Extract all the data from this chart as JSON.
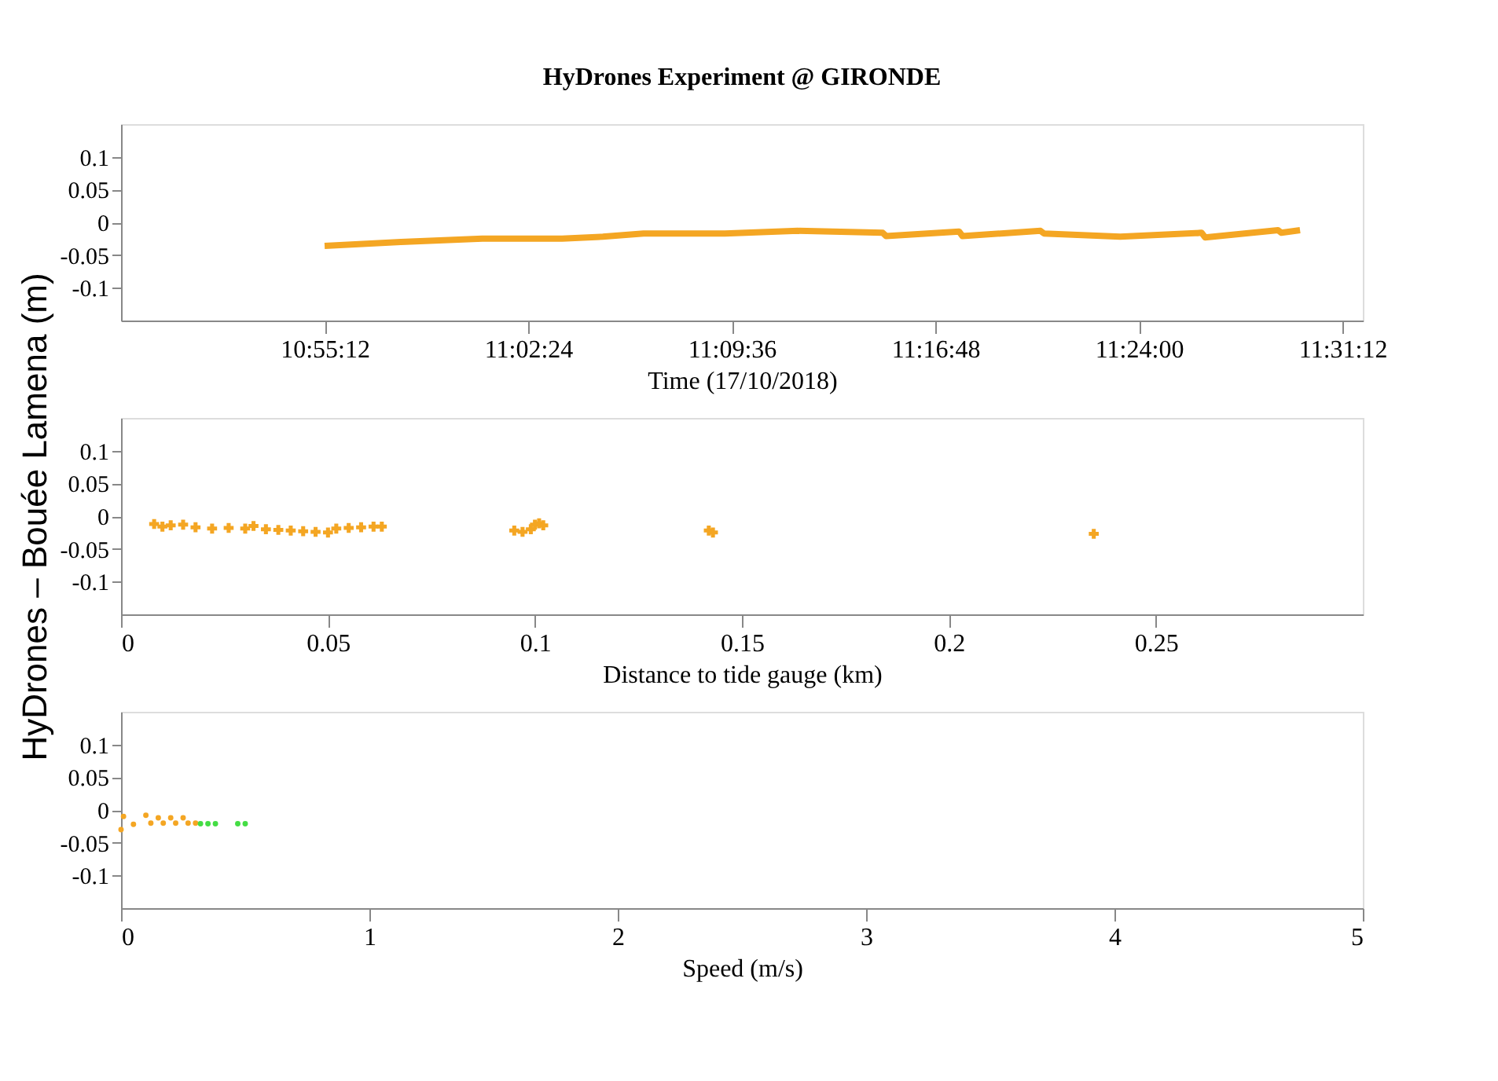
{
  "chart_data": [
    {
      "type": "line",
      "title": "HyDrones Experiment @ GIRONDE",
      "xlabel": "Time (17/10/2018)",
      "xlim": [
        10.8,
        11.532
      ],
      "ylim": [
        -0.15,
        0.15
      ],
      "xticks": [
        {
          "value": 10.92,
          "label": "10:55:12"
        },
        {
          "value": 11.04,
          "label": "11:02:24"
        },
        {
          "value": 11.16,
          "label": "11:09:36"
        },
        {
          "value": 11.28,
          "label": "11:16:48"
        },
        {
          "value": 11.4,
          "label": "11:24:00"
        },
        {
          "value": 11.52,
          "label": "11:31:12"
        }
      ],
      "yticks": [
        -0.1,
        -0.05,
        0,
        0.05,
        0.1
      ],
      "grid": false,
      "legend": false,
      "marker": "none",
      "line_style": "solid",
      "series": [
        {
          "color": "#f4a623",
          "x": [
            10.92,
            10.965,
            11.013,
            11.06,
            11.084,
            11.108,
            11.156,
            11.199,
            11.249,
            11.251,
            11.294,
            11.296,
            11.342,
            11.344,
            11.389,
            11.437,
            11.439,
            11.482,
            11.484,
            11.495
          ],
          "values": [
            -0.036,
            -0.03,
            -0.025,
            -0.025,
            -0.022,
            -0.017,
            -0.017,
            -0.013,
            -0.016,
            -0.021,
            -0.014,
            -0.021,
            -0.013,
            -0.017,
            -0.022,
            -0.016,
            -0.023,
            -0.012,
            -0.016,
            -0.012
          ]
        }
      ]
    },
    {
      "type": "scatter",
      "xlabel": "Distance to tide gauge (km)",
      "ylabel": "HyDrones – Bouée Lamena (m)",
      "xlim": [
        0,
        0.3
      ],
      "ylim": [
        -0.15,
        0.15
      ],
      "xticks": [
        0,
        0.05,
        0.1,
        0.15,
        0.2,
        0.25
      ],
      "yticks": [
        -0.1,
        -0.05,
        0,
        0.05,
        0.1
      ],
      "grid": false,
      "legend": false,
      "marker": "cross",
      "series": [
        {
          "color": "#f4a623",
          "x": [
            0.008,
            0.01,
            0.012,
            0.015,
            0.018,
            0.022,
            0.026,
            0.03,
            0.032,
            0.035,
            0.038,
            0.041,
            0.044,
            0.047,
            0.05,
            0.052,
            0.055,
            0.058,
            0.061,
            0.063,
            0.095,
            0.097,
            0.099,
            0.1,
            0.101,
            0.102,
            0.142,
            0.143,
            0.235
          ],
          "values": [
            -0.012,
            -0.016,
            -0.014,
            -0.013,
            -0.017,
            -0.019,
            -0.018,
            -0.019,
            -0.015,
            -0.02,
            -0.021,
            -0.022,
            -0.023,
            -0.024,
            -0.025,
            -0.019,
            -0.018,
            -0.017,
            -0.016,
            -0.016,
            -0.022,
            -0.024,
            -0.02,
            -0.013,
            -0.011,
            -0.014,
            -0.022,
            -0.025,
            -0.027
          ]
        }
      ]
    },
    {
      "type": "scatter",
      "xlabel": "Speed (m/s)",
      "xlim": [
        0,
        5
      ],
      "ylim": [
        -0.15,
        0.15
      ],
      "xticks": [
        0,
        1,
        2,
        3,
        4,
        5
      ],
      "yticks": [
        -0.1,
        -0.05,
        0,
        0.05,
        0.1
      ],
      "grid": false,
      "legend": false,
      "marker": "circle",
      "series": [
        {
          "color": "#f4a623",
          "x": [
            0.0,
            0.01,
            0.05,
            0.1,
            0.15,
            0.2,
            0.25,
            0.12,
            0.17,
            0.22,
            0.27,
            0.3
          ],
          "values": [
            -0.03,
            -0.01,
            -0.022,
            -0.008,
            -0.012,
            -0.012,
            -0.012,
            -0.02,
            -0.02,
            -0.02,
            -0.02,
            -0.02
          ]
        },
        {
          "color": "#44dd44",
          "x": [
            0.32,
            0.35,
            0.38,
            0.47,
            0.5
          ],
          "values": [
            -0.021,
            -0.021,
            -0.021,
            -0.021,
            -0.021
          ]
        }
      ]
    }
  ]
}
